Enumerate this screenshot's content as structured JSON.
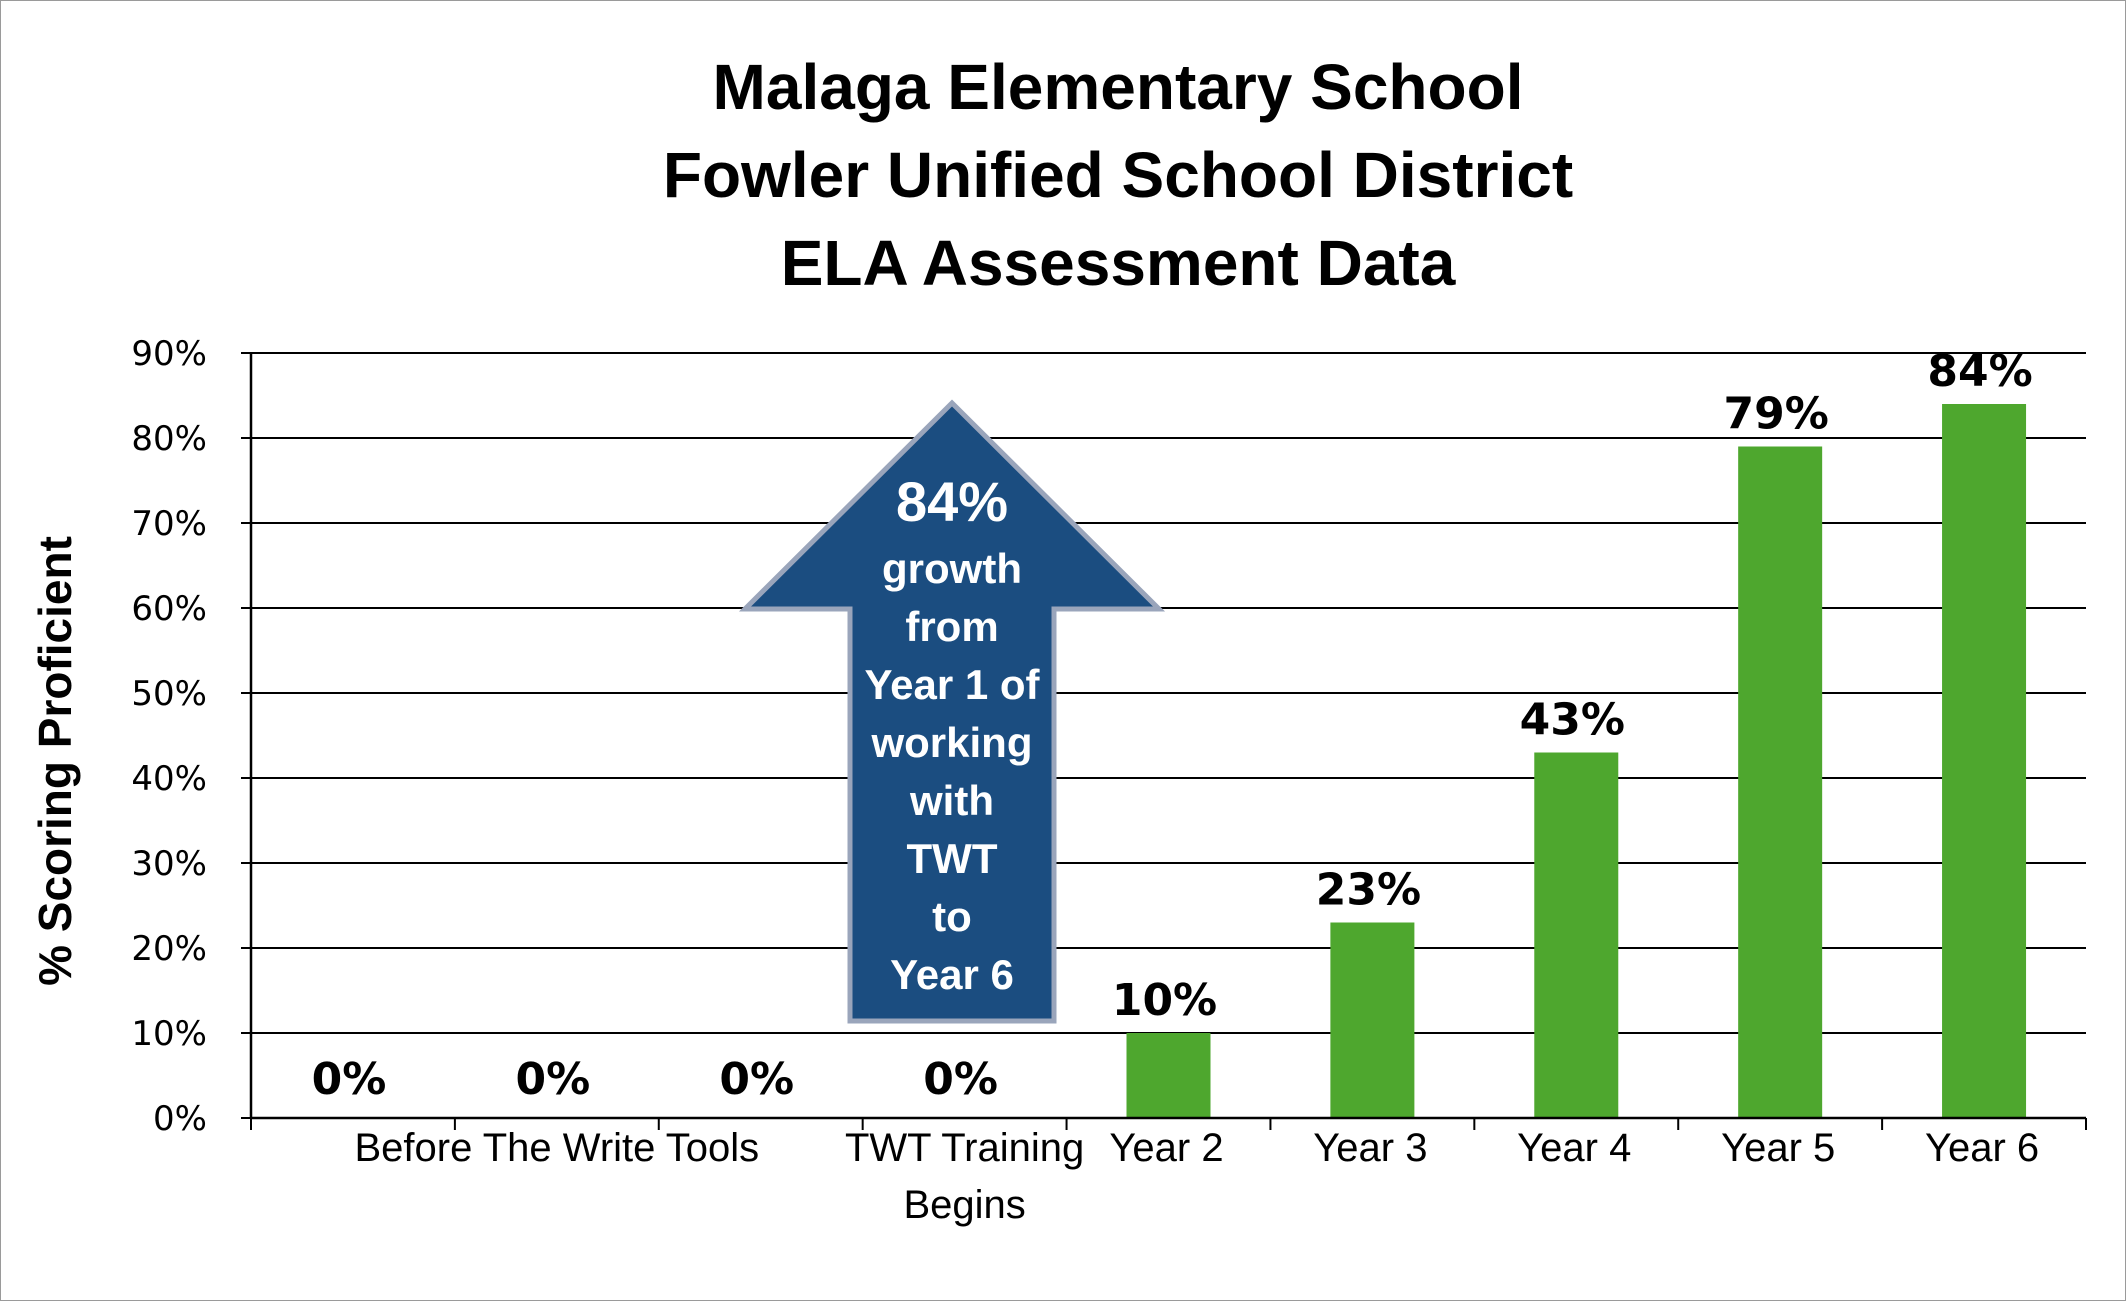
{
  "chart_data": {
    "type": "bar",
    "title_lines": [
      "Malaga Elementary School",
      "Fowler Unified School District",
      "ELA Assessment Data"
    ],
    "ylabel": "% Scoring Proficient",
    "xlabel": "",
    "ylim": [
      0,
      90
    ],
    "yticks": [
      "0%",
      "10%",
      "20%",
      "30%",
      "40%",
      "50%",
      "60%",
      "70%",
      "80%",
      "90%"
    ],
    "grid": true,
    "categories": [
      {
        "label": "",
        "value": 0,
        "value_label": "0%"
      },
      {
        "label": "",
        "value": 0,
        "value_label": "0%"
      },
      {
        "label": "",
        "value": 0,
        "value_label": "0%"
      },
      {
        "label": "",
        "value": 0,
        "value_label": "0%"
      },
      {
        "label": "Year 2",
        "value": 10,
        "value_label": "10%"
      },
      {
        "label": "Year 3",
        "value": 23,
        "value_label": "23%"
      },
      {
        "label": "Year 4",
        "value": 43,
        "value_label": "43%"
      },
      {
        "label": "Year 5",
        "value": 79,
        "value_label": "79%"
      },
      {
        "label": "Year 6",
        "value": 84,
        "value_label": "84%"
      }
    ],
    "group_labels": [
      {
        "text": "Before The Write Tools"
      },
      {
        "text": "TWT Training",
        "line2": "Begins"
      }
    ],
    "bar_color": "#4ea72e",
    "annotation": {
      "headline": "84%",
      "lines": [
        "growth",
        "from",
        "Year 1 of",
        "working",
        "with",
        "TWT",
        "to",
        "Year 6"
      ],
      "fill": "#1b4d80",
      "stroke": "#9aa5bb"
    }
  }
}
